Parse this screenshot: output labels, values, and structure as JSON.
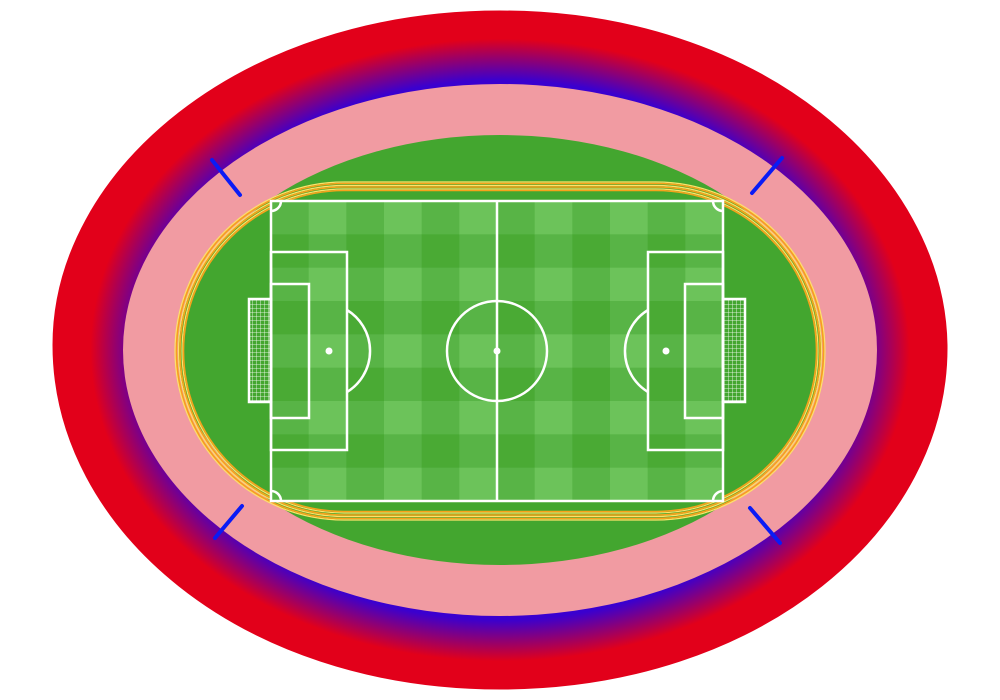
{
  "colors": {
    "background": "#ffffff",
    "outer_ring_red": "#e2001a",
    "outer_ring_blue": "#3a00cf",
    "concourse_pink": "#f19ba2",
    "grass": "#43a62f",
    "pitch_stripe_dark": "#4aaa34",
    "pitch_stripe_mid": "#58b446",
    "pitch_stripe_light": "#6cc35a",
    "track_orange": "#f7a21b",
    "track_yellow": "#fde26a",
    "lines": "#ffffff",
    "aisle_blue": "#0a1bf5"
  },
  "icons": {
    "stadium": "stadium-icon",
    "pitch": "football-pitch-icon",
    "goal_net": "goal-net-icon"
  }
}
